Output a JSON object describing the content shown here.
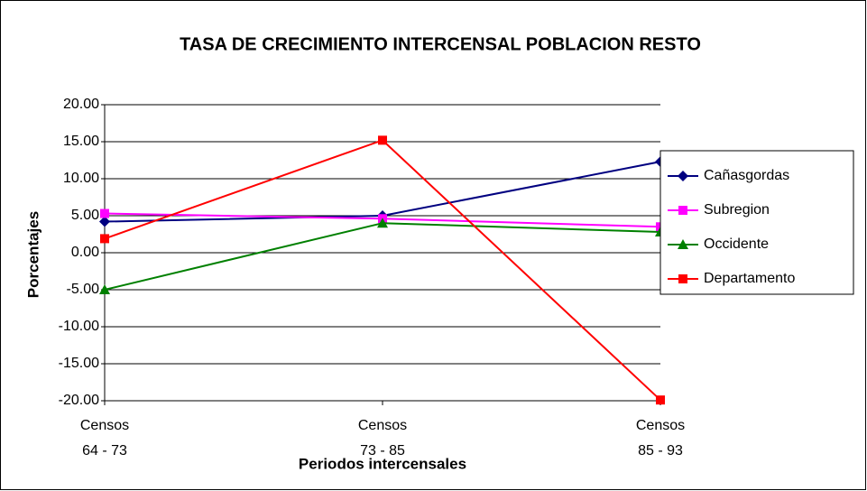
{
  "chart_data": {
    "type": "line",
    "title": "TASA DE CRECIMIENTO INTERCENSAL POBLACION RESTO",
    "x_label": "Periodos intercensales",
    "y_label": "Porcentajes",
    "categories": [
      "Censos\n64 - 73",
      "Censos\n73 - 85",
      "Censos\n85 - 93"
    ],
    "series": [
      {
        "name": "Cañasgordas",
        "color": "#000080",
        "marker": "diamond",
        "values": [
          4.2,
          5.0,
          12.3
        ]
      },
      {
        "name": "Subregion",
        "color": "#ff00ff",
        "marker": "square",
        "values": [
          5.3,
          4.6,
          3.5
        ]
      },
      {
        "name": "Occidente",
        "color": "#008000",
        "marker": "triangle",
        "values": [
          -5.0,
          4.0,
          2.8
        ]
      },
      {
        "name": "Departamento",
        "color": "#ff0000",
        "marker": "square",
        "values": [
          1.9,
          15.2,
          -19.9
        ]
      }
    ],
    "ylim": [
      -20,
      20
    ],
    "yticks": [
      {
        "value": -20,
        "label": "-20.00"
      },
      {
        "value": -15,
        "label": "-15.00"
      },
      {
        "value": -10,
        "label": "-10.00"
      },
      {
        "value": -5,
        "label": "-5.00"
      },
      {
        "value": 0,
        "label": "0.00"
      },
      {
        "value": 5,
        "label": "5.00"
      },
      {
        "value": 10,
        "label": "10.00"
      },
      {
        "value": 15,
        "label": "15.00"
      },
      {
        "value": 20,
        "label": "20.00"
      }
    ],
    "grid": true,
    "legend": "right"
  }
}
